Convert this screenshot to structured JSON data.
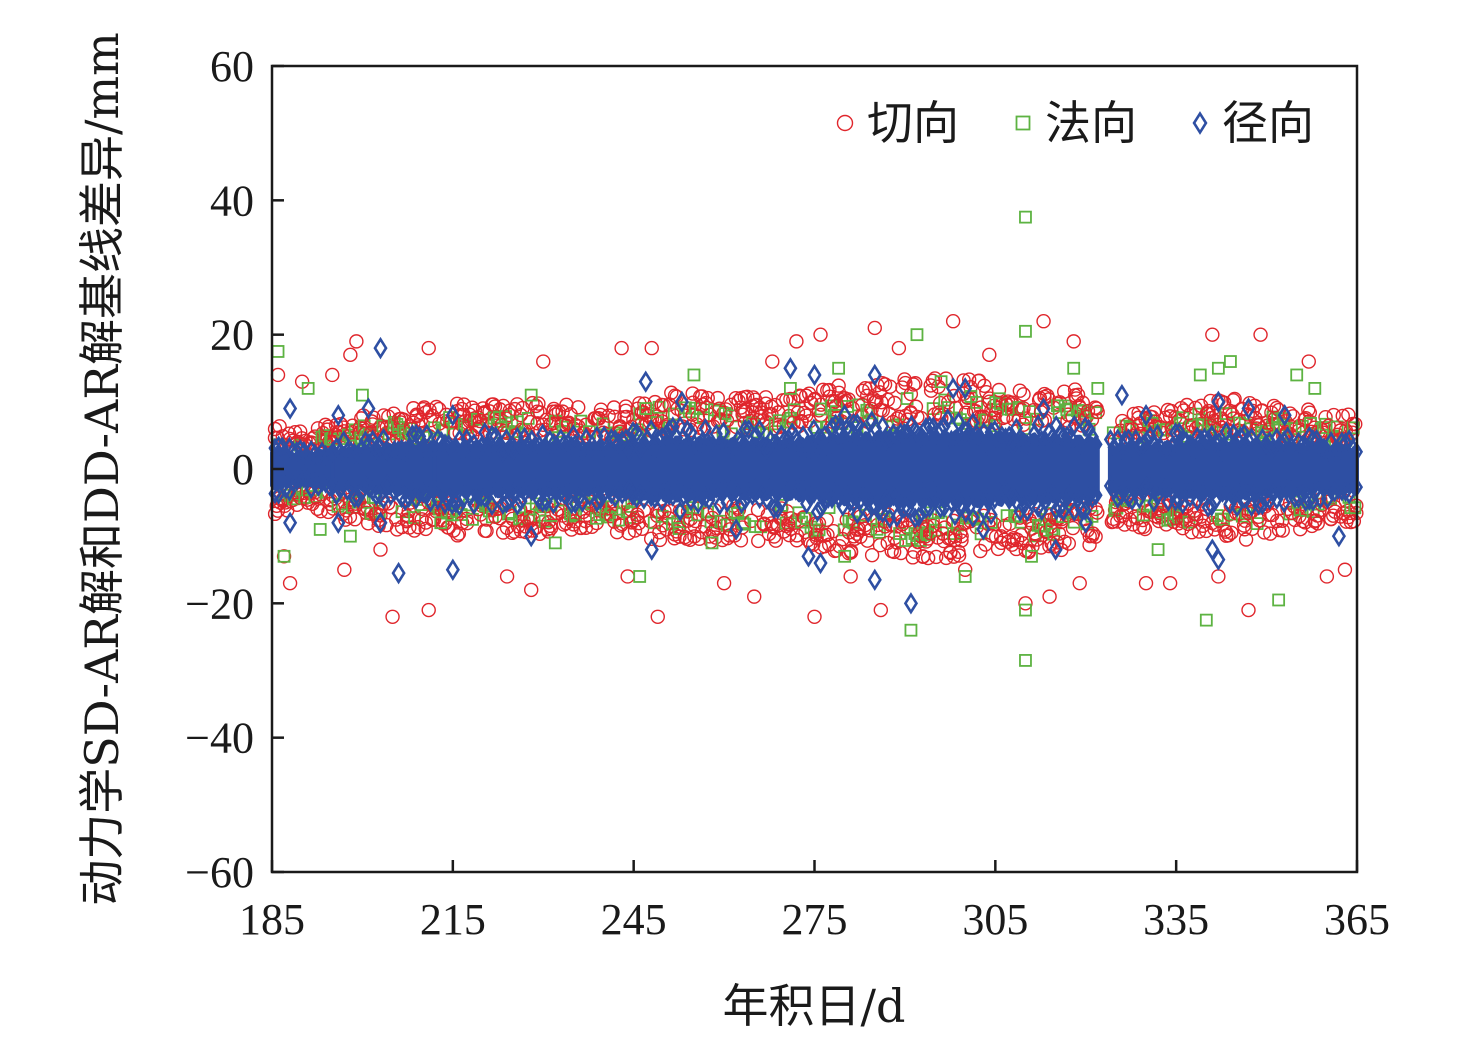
{
  "chart_data": {
    "type": "scatter",
    "xlabel": "年积日/d",
    "ylabel": "动力学SD-AR解和DD-AR解基线差异/mm",
    "xlim": [
      185,
      365
    ],
    "ylim": [
      -60,
      60
    ],
    "x_ticks": [
      "185",
      "215",
      "245",
      "275",
      "305",
      "335",
      "365"
    ],
    "y_ticks": [
      "60",
      "40",
      "20",
      "0",
      "−20",
      "−40",
      "−60"
    ],
    "grid": false,
    "legend_position": "top-right",
    "series": [
      {
        "name": "切向",
        "marker": "circle",
        "color": "#e0262c",
        "points": [
          [
            186,
            14
          ],
          [
            187,
            -13
          ],
          [
            188,
            -17
          ],
          [
            190,
            13
          ],
          [
            195,
            14
          ],
          [
            197,
            -15
          ],
          [
            198,
            17
          ],
          [
            199,
            19
          ],
          [
            203,
            -12
          ],
          [
            205,
            -22
          ],
          [
            211,
            18
          ],
          [
            211,
            -21
          ],
          [
            224,
            -16
          ],
          [
            228,
            -18
          ],
          [
            230,
            16
          ],
          [
            243,
            18
          ],
          [
            244,
            -16
          ],
          [
            248,
            18
          ],
          [
            249,
            -22
          ],
          [
            260,
            -17
          ],
          [
            265,
            -19
          ],
          [
            268,
            16
          ],
          [
            272,
            19
          ],
          [
            275,
            -22
          ],
          [
            276,
            20
          ],
          [
            281,
            -16
          ],
          [
            285,
            21
          ],
          [
            286,
            -21
          ],
          [
            289,
            18
          ],
          [
            293,
            -13
          ],
          [
            298,
            22
          ],
          [
            300,
            -15
          ],
          [
            304,
            17
          ],
          [
            310,
            -20
          ],
          [
            313,
            22
          ],
          [
            314,
            -19
          ],
          [
            318,
            19
          ],
          [
            319,
            -17
          ],
          [
            330,
            -17
          ],
          [
            334,
            -17
          ],
          [
            341,
            20
          ],
          [
            342,
            -16
          ],
          [
            347,
            -21
          ],
          [
            349,
            20
          ],
          [
            357,
            16
          ],
          [
            360,
            -16
          ],
          [
            363,
            -15
          ]
        ]
      },
      {
        "name": "法向",
        "marker": "square",
        "color": "#5db342",
        "points": [
          [
            186,
            17.5
          ],
          [
            187,
            -13
          ],
          [
            191,
            12
          ],
          [
            193,
            -9
          ],
          [
            198,
            -10
          ],
          [
            200,
            11
          ],
          [
            213,
            -8
          ],
          [
            228,
            11
          ],
          [
            232,
            -11
          ],
          [
            246,
            -16
          ],
          [
            247,
            9
          ],
          [
            255,
            14
          ],
          [
            258,
            -11
          ],
          [
            271,
            12
          ],
          [
            279,
            15
          ],
          [
            280,
            -13
          ],
          [
            291,
            -24
          ],
          [
            292,
            20
          ],
          [
            296,
            13
          ],
          [
            300,
            -16
          ],
          [
            310,
            37.5
          ],
          [
            310,
            20.5
          ],
          [
            310,
            -21
          ],
          [
            310,
            -28.5
          ],
          [
            311,
            -13
          ],
          [
            318,
            15
          ],
          [
            322,
            12
          ],
          [
            332,
            -12
          ],
          [
            339,
            14
          ],
          [
            340,
            -22.5
          ],
          [
            342,
            15
          ],
          [
            344,
            16
          ],
          [
            352,
            -19.5
          ],
          [
            355,
            14
          ],
          [
            358,
            12
          ]
        ]
      },
      {
        "name": "径向",
        "marker": "diamond",
        "color": "#2e4fa3",
        "points": [
          [
            188,
            9
          ],
          [
            188,
            -8
          ],
          [
            196,
            8
          ],
          [
            196,
            -8
          ],
          [
            201,
            9
          ],
          [
            203,
            18
          ],
          [
            203,
            -8
          ],
          [
            206,
            -15.5
          ],
          [
            215,
            8
          ],
          [
            215,
            -15
          ],
          [
            228,
            -10
          ],
          [
            235,
            5
          ],
          [
            247,
            13
          ],
          [
            248,
            -12
          ],
          [
            253,
            10
          ],
          [
            262,
            -9
          ],
          [
            271,
            15
          ],
          [
            274,
            -13
          ],
          [
            275,
            14
          ],
          [
            276,
            -14
          ],
          [
            280,
            8
          ],
          [
            285,
            14
          ],
          [
            285,
            -16.5
          ],
          [
            291,
            -20
          ],
          [
            298,
            12
          ],
          [
            300,
            12
          ],
          [
            303,
            -9
          ],
          [
            313,
            9
          ],
          [
            315,
            -12
          ],
          [
            320,
            -8
          ],
          [
            326,
            11
          ],
          [
            330,
            8
          ],
          [
            341,
            -12
          ],
          [
            342,
            -13.5
          ],
          [
            342,
            10
          ],
          [
            347,
            9
          ],
          [
            353,
            8
          ],
          [
            362,
            -10
          ]
        ]
      }
    ],
    "dense_band": {
      "color": "#2e4fa3",
      "note_free": true,
      "segments": [
        [
          185,
          195
        ],
        [
          195,
          212
        ],
        [
          212,
          240
        ],
        [
          240,
          322
        ],
        [
          324,
          365
        ]
      ],
      "half_width": [
        [
          185,
          4
        ],
        [
          190,
          3
        ],
        [
          195,
          4
        ],
        [
          205,
          5
        ],
        [
          215,
          5.5
        ],
        [
          230,
          5.5
        ],
        [
          240,
          5
        ],
        [
          250,
          6.5
        ],
        [
          260,
          6
        ],
        [
          270,
          6
        ],
        [
          280,
          7
        ],
        [
          290,
          7.5
        ],
        [
          300,
          7.5
        ],
        [
          310,
          7
        ],
        [
          320,
          6.5
        ],
        [
          322,
          6
        ],
        [
          324,
          4.5
        ],
        [
          335,
          5.5
        ],
        [
          345,
          6
        ],
        [
          355,
          5
        ],
        [
          365,
          4.5
        ]
      ]
    }
  }
}
